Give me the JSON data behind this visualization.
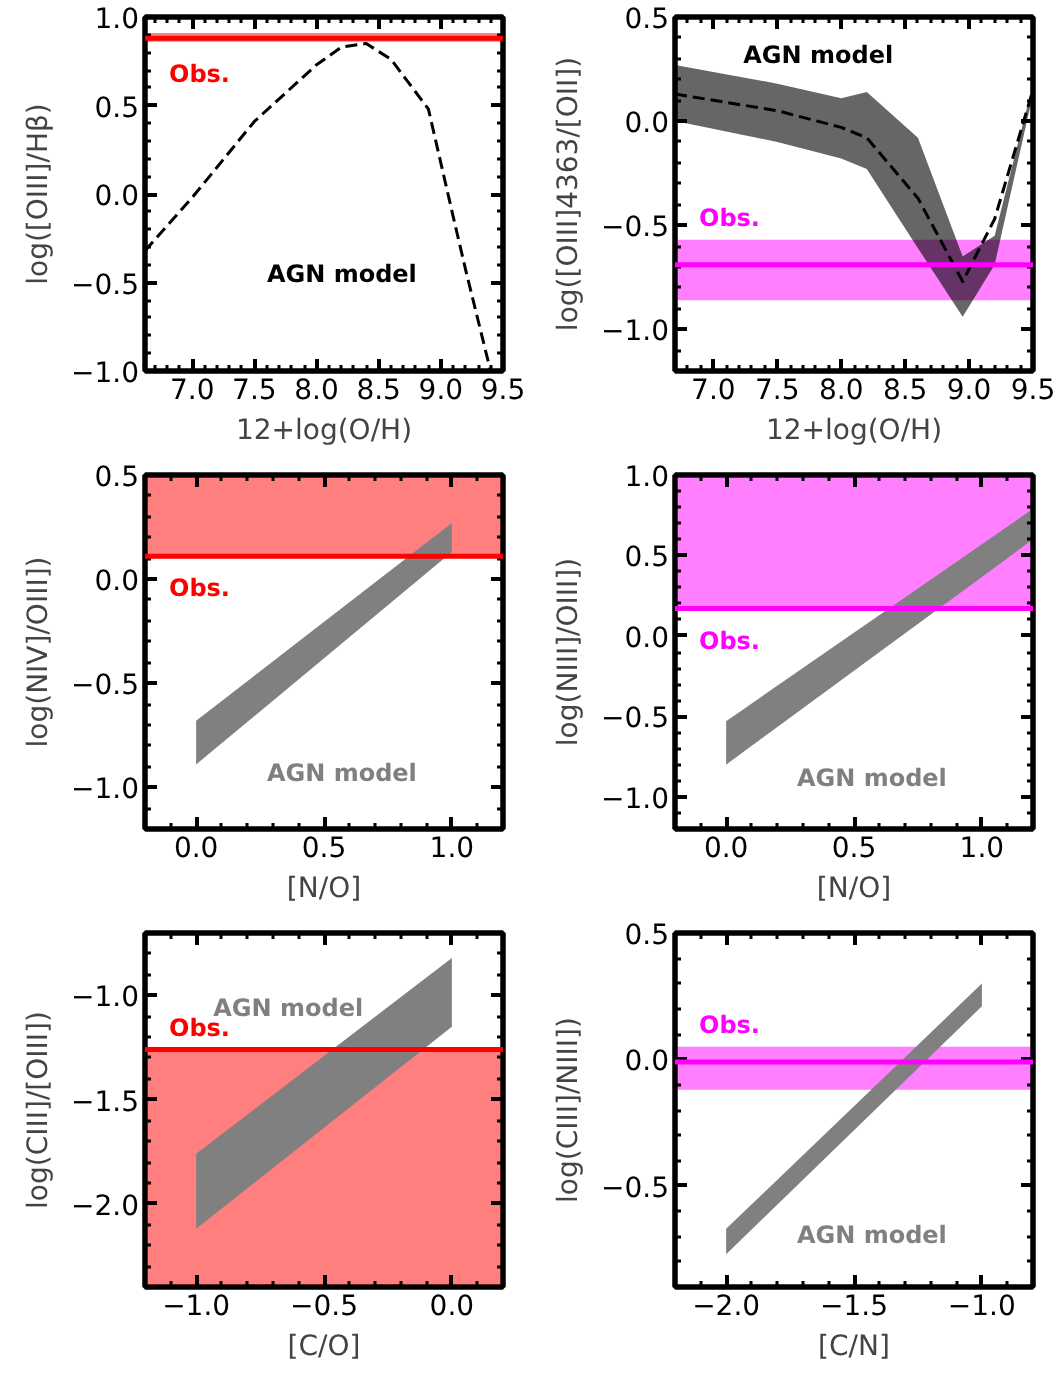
{
  "chart_data": [
    {
      "type": "line",
      "xlabel": "12+log(O/H)",
      "ylabel": "log([OIII]/Hβ)",
      "xlim": [
        6.62,
        9.5
      ],
      "ylim": [
        -1.0,
        1.0
      ],
      "xticks": [
        {
          "value": 7.0,
          "label": "7.0"
        },
        {
          "value": 7.5,
          "label": "7.5"
        },
        {
          "value": 8.0,
          "label": "8.0"
        },
        {
          "value": 8.5,
          "label": "8.5"
        },
        {
          "value": 9.0,
          "label": "9.0"
        },
        {
          "value": 9.5,
          "label": "9.5"
        }
      ],
      "yticks": [
        {
          "value": -1.0,
          "label": "−1.0"
        },
        {
          "value": -0.5,
          "label": "−0.5"
        },
        {
          "value": 0.0,
          "label": "0.0"
        },
        {
          "value": 0.5,
          "label": "0.5"
        },
        {
          "value": 1.0,
          "label": "1.0"
        }
      ],
      "series": [
        {
          "name": "AGN model",
          "line_style": "dashed",
          "color": "#000000",
          "x": [
            6.62,
            7.0,
            7.5,
            8.0,
            8.2,
            8.4,
            8.6,
            8.9,
            9.1,
            9.2,
            9.4
          ],
          "values": [
            -0.32,
            -0.02,
            0.41,
            0.73,
            0.83,
            0.85,
            0.76,
            0.48,
            -0.13,
            -0.43,
            -1.0
          ]
        }
      ],
      "ref_lines": [
        {
          "axis": "y",
          "value": 0.88,
          "color": "#ff0000",
          "label": "Obs."
        }
      ],
      "bands": [
        {
          "axis": "y",
          "from": 0.86,
          "to": 0.91,
          "color": "#ff0000"
        }
      ]
    },
    {
      "type": "line",
      "xlabel": "12+log(O/H)",
      "ylabel": "log([OIII]4363/[OII])",
      "xlim": [
        6.7,
        9.5
      ],
      "ylim": [
        -1.2,
        0.5
      ],
      "xticks": [
        {
          "value": 7.0,
          "label": "7.0"
        },
        {
          "value": 7.5,
          "label": "7.5"
        },
        {
          "value": 8.0,
          "label": "8.0"
        },
        {
          "value": 8.5,
          "label": "8.5"
        },
        {
          "value": 9.0,
          "label": "9.0"
        },
        {
          "value": 9.5,
          "label": "9.5"
        }
      ],
      "yticks": [
        {
          "value": -1.0,
          "label": "−1.0"
        },
        {
          "value": -0.5,
          "label": "−0.5"
        },
        {
          "value": 0.0,
          "label": "0.0"
        },
        {
          "value": 0.5,
          "label": "0.5"
        }
      ],
      "series": [
        {
          "name": "AGN model",
          "line_style": "dashed",
          "color": "#000000",
          "x": [
            6.7,
            7.5,
            8.0,
            8.2,
            8.6,
            8.95,
            9.2,
            9.5
          ],
          "values": [
            0.13,
            0.05,
            -0.03,
            -0.08,
            -0.37,
            -0.77,
            -0.47,
            0.15
          ],
          "lower": [
            0.0,
            -0.1,
            -0.18,
            -0.23,
            -0.61,
            -0.94,
            -0.69,
            0.13
          ],
          "upper": [
            0.27,
            0.18,
            0.11,
            0.14,
            -0.08,
            -0.65,
            -0.55,
            0.18
          ]
        }
      ],
      "ref_lines": [
        {
          "axis": "y",
          "value": -0.69,
          "color": "#ff00ff",
          "label": "Obs."
        }
      ],
      "bands": [
        {
          "axis": "y",
          "from": -0.86,
          "to": -0.57,
          "color": "#ff00ff"
        }
      ]
    },
    {
      "type": "area",
      "xlabel": "[N/O]",
      "ylabel": "log(NIV]/OIII])",
      "xlim": [
        -0.2,
        1.2
      ],
      "ylim": [
        -1.2,
        0.5
      ],
      "xticks": [
        {
          "value": 0.0,
          "label": "0.0"
        },
        {
          "value": 0.5,
          "label": "0.5"
        },
        {
          "value": 1.0,
          "label": "1.0"
        }
      ],
      "yticks": [
        {
          "value": -1.0,
          "label": "−1.0"
        },
        {
          "value": -0.5,
          "label": "−0.5"
        },
        {
          "value": 0.0,
          "label": "0.0"
        },
        {
          "value": 0.5,
          "label": "0.5"
        }
      ],
      "series": [
        {
          "name": "AGN model",
          "color": "#808080",
          "x": [
            0.0,
            1.0
          ],
          "values": [
            null,
            null
          ],
          "lower": [
            -0.89,
            0.13
          ],
          "upper": [
            -0.68,
            0.27
          ]
        }
      ],
      "ref_lines": [
        {
          "axis": "y",
          "value": 0.11,
          "color": "#ff0000",
          "label": "Obs."
        }
      ],
      "bands": [
        {
          "axis": "y",
          "from": 0.11,
          "to": 0.5,
          "color": "#ff0000"
        }
      ]
    },
    {
      "type": "area",
      "xlabel": "[N/O]",
      "ylabel": "log(NIII]/OIII])",
      "xlim": [
        -0.2,
        1.2
      ],
      "ylim": [
        -1.2,
        1.0
      ],
      "xticks": [
        {
          "value": 0.0,
          "label": "0.0"
        },
        {
          "value": 0.5,
          "label": "0.5"
        },
        {
          "value": 1.0,
          "label": "1.0"
        }
      ],
      "yticks": [
        {
          "value": -1.0,
          "label": "−1.0"
        },
        {
          "value": -0.5,
          "label": "−0.5"
        },
        {
          "value": 0.0,
          "label": "0.0"
        },
        {
          "value": 0.5,
          "label": "0.5"
        },
        {
          "value": 1.0,
          "label": "1.0"
        }
      ],
      "series": [
        {
          "name": "AGN model",
          "color": "#808080",
          "x": [
            0.0,
            1.2
          ],
          "values": [
            null,
            null
          ],
          "lower": [
            -0.8,
            0.6
          ],
          "upper": [
            -0.53,
            0.79
          ]
        }
      ],
      "ref_lines": [
        {
          "axis": "y",
          "value": 0.17,
          "color": "#ff00ff",
          "label": "Obs."
        }
      ],
      "bands": [
        {
          "axis": "y",
          "from": 0.17,
          "to": 1.0,
          "color": "#ff00ff"
        }
      ]
    },
    {
      "type": "area",
      "xlabel": "[C/O]",
      "ylabel": "log(CIII]/[OIII])",
      "xlim": [
        -1.2,
        0.2
      ],
      "ylim": [
        -2.4,
        -0.7
      ],
      "xticks": [
        {
          "value": -1.0,
          "label": "−1.0"
        },
        {
          "value": -0.5,
          "label": "−0.5"
        },
        {
          "value": 0.0,
          "label": "0.0"
        }
      ],
      "yticks": [
        {
          "value": -2.0,
          "label": "−2.0"
        },
        {
          "value": -1.5,
          "label": "−1.5"
        },
        {
          "value": -1.0,
          "label": "−1.0"
        }
      ],
      "series": [
        {
          "name": "AGN model",
          "color": "#808080",
          "x": [
            -1.0,
            0.0
          ],
          "values": [
            null,
            null
          ],
          "lower": [
            -2.12,
            -1.15
          ],
          "upper": [
            -1.76,
            -0.82
          ]
        }
      ],
      "ref_lines": [
        {
          "axis": "y",
          "value": -1.26,
          "color": "#ff0000",
          "label": "Obs."
        }
      ],
      "bands": [
        {
          "axis": "y",
          "from": -2.4,
          "to": -1.26,
          "color": "#ff0000"
        }
      ]
    },
    {
      "type": "area",
      "xlabel": "[C/N]",
      "ylabel": "log(CIII]/NIII])",
      "xlim": [
        -2.2,
        -0.8
      ],
      "ylim": [
        -0.9,
        0.5
      ],
      "xticks": [
        {
          "value": -2.0,
          "label": "−2.0"
        },
        {
          "value": -1.5,
          "label": "−1.5"
        },
        {
          "value": -1.0,
          "label": "−1.0"
        }
      ],
      "yticks": [
        {
          "value": -0.5,
          "label": "−0.5"
        },
        {
          "value": 0.0,
          "label": "0.0"
        },
        {
          "value": 0.5,
          "label": "0.5"
        }
      ],
      "series": [
        {
          "name": "AGN model",
          "color": "#808080",
          "x": [
            -2.0,
            -1.0
          ],
          "values": [
            null,
            null
          ],
          "lower": [
            -0.77,
            0.21
          ],
          "upper": [
            -0.67,
            0.3
          ]
        }
      ],
      "ref_lines": [
        {
          "axis": "y",
          "value": -0.01,
          "color": "#ff00ff",
          "label": "Obs."
        }
      ],
      "bands": [
        {
          "axis": "y",
          "from": -0.12,
          "to": 0.05,
          "color": "#ff00ff"
        }
      ]
    }
  ]
}
